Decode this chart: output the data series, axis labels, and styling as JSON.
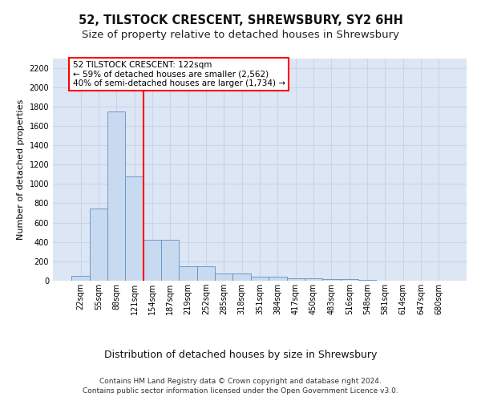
{
  "title": "52, TILSTOCK CRESCENT, SHREWSBURY, SY2 6HH",
  "subtitle": "Size of property relative to detached houses in Shrewsbury",
  "xlabel": "Distribution of detached houses by size in Shrewsbury",
  "ylabel": "Number of detached properties",
  "footer_line1": "Contains HM Land Registry data © Crown copyright and database right 2024.",
  "footer_line2": "Contains public sector information licensed under the Open Government Licence v3.0.",
  "bin_labels": [
    "22sqm",
    "55sqm",
    "88sqm",
    "121sqm",
    "154sqm",
    "187sqm",
    "219sqm",
    "252sqm",
    "285sqm",
    "318sqm",
    "351sqm",
    "384sqm",
    "417sqm",
    "450sqm",
    "483sqm",
    "516sqm",
    "548sqm",
    "581sqm",
    "614sqm",
    "647sqm",
    "680sqm"
  ],
  "bar_values": [
    50,
    750,
    1750,
    1075,
    420,
    420,
    150,
    150,
    75,
    75,
    40,
    40,
    25,
    25,
    20,
    20,
    10,
    0,
    0,
    0,
    0
  ],
  "bar_color": "#c8daf0",
  "bar_edge_color": "#6090c0",
  "red_line_x": 3.5,
  "annotation_line1": "52 TILSTOCK CRESCENT: 122sqm",
  "annotation_line2": "← 59% of detached houses are smaller (2,562)",
  "annotation_line3": "40% of semi-detached houses are larger (1,734) →",
  "ylim": [
    0,
    2300
  ],
  "yticks": [
    0,
    200,
    400,
    600,
    800,
    1000,
    1200,
    1400,
    1600,
    1800,
    2000,
    2200
  ],
  "grid_color": "#c8d4e8",
  "background_color": "#dde6f4",
  "title_fontsize": 10.5,
  "subtitle_fontsize": 9.5,
  "ylabel_fontsize": 8,
  "xlabel_fontsize": 9,
  "tick_fontsize": 7,
  "annotation_fontsize": 7.5,
  "footer_fontsize": 6.5
}
